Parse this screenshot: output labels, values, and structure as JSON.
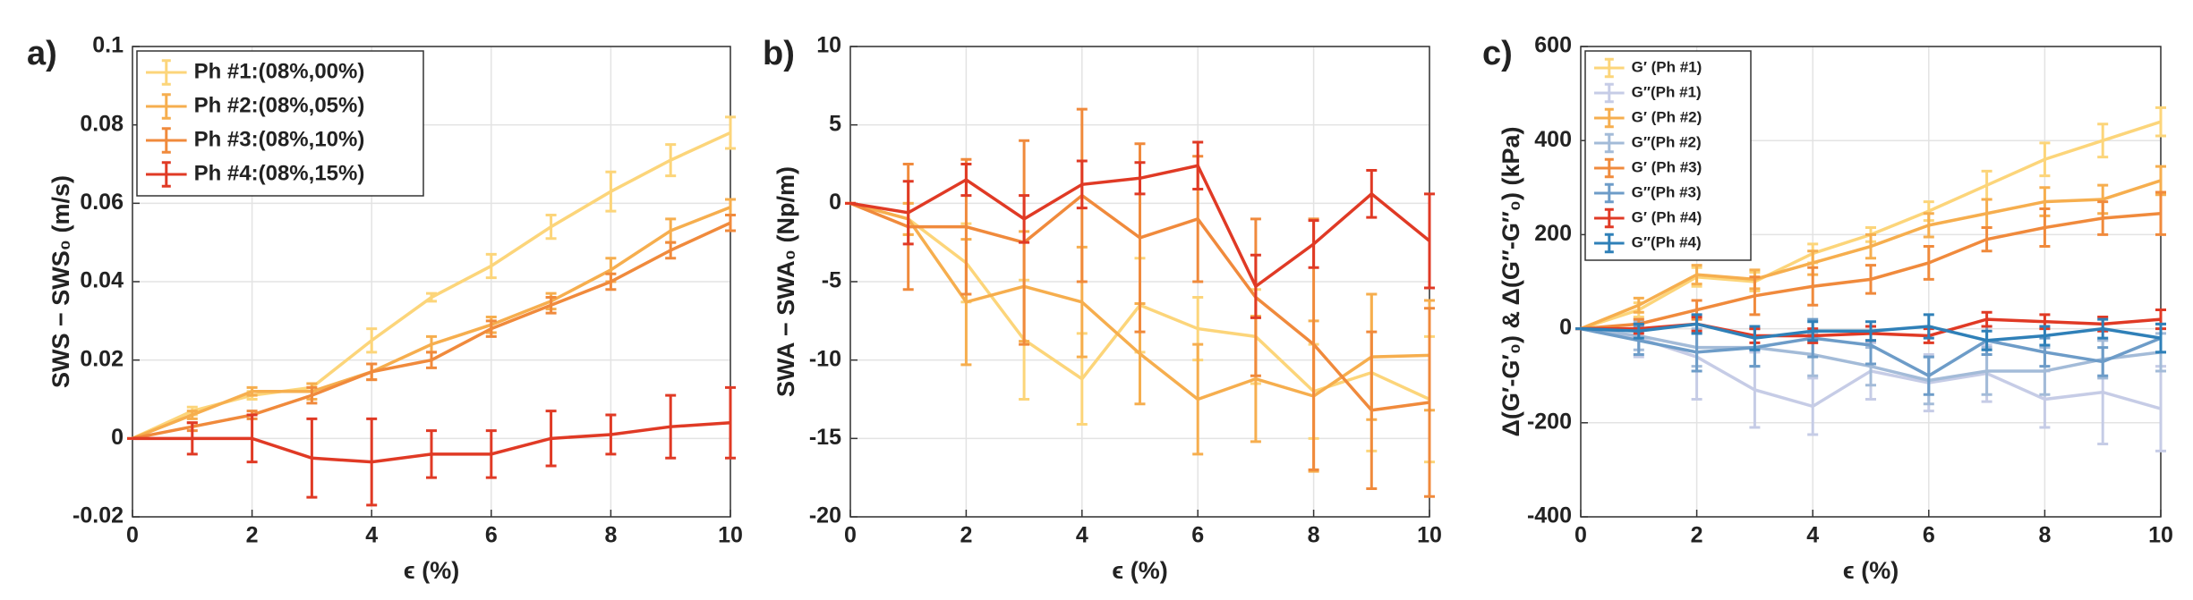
{
  "chart_data": [
    {
      "type": "line",
      "label": "a)",
      "ylabel": "SWS − SWS₀ (m/s)",
      "xlabel": "ϵ (%)",
      "x": [
        0,
        1,
        2,
        3,
        4,
        5,
        6,
        7,
        8,
        9,
        10
      ],
      "xlim": [
        0,
        10
      ],
      "xticks": [
        0,
        2,
        4,
        6,
        8,
        10
      ],
      "ylim": [
        -0.02,
        0.1
      ],
      "yticks": [
        -0.02,
        0,
        0.02,
        0.04,
        0.06,
        0.08,
        0.1
      ],
      "grid": true,
      "legend": "upper left",
      "series": [
        {
          "name": "Ph #1:(08%,00%)",
          "color": "#fcd57a",
          "values": [
            0,
            0.007,
            0.011,
            0.013,
            0.025,
            0.036,
            0.044,
            0.054,
            0.063,
            0.071,
            0.078
          ],
          "errors": [
            0,
            0.001,
            0.001,
            0.001,
            0.003,
            0.001,
            0.003,
            0.003,
            0.005,
            0.004,
            0.004
          ]
        },
        {
          "name": "Ph #2:(08%,05%)",
          "color": "#f6ae4e",
          "values": [
            0,
            0.006,
            0.012,
            0.012,
            0.017,
            0.024,
            0.029,
            0.035,
            0.043,
            0.053,
            0.059
          ],
          "errors": [
            0,
            0.001,
            0.001,
            0.002,
            0.002,
            0.002,
            0.002,
            0.002,
            0.003,
            0.003,
            0.002
          ]
        },
        {
          "name": "Ph #3:(08%,10%)",
          "color": "#f08a3c",
          "values": [
            0,
            0.003,
            0.006,
            0.011,
            0.017,
            0.02,
            0.028,
            0.034,
            0.04,
            0.048,
            0.055
          ],
          "errors": [
            0,
            0.001,
            0.001,
            0.002,
            0.002,
            0.002,
            0.002,
            0.002,
            0.002,
            0.002,
            0.002
          ]
        },
        {
          "name": "Ph #4:(08%,15%)",
          "color": "#e03a25",
          "values": [
            0,
            0,
            0,
            -0.005,
            -0.006,
            -0.004,
            -0.004,
            0,
            0.001,
            0.003,
            0.004
          ],
          "errors": [
            0,
            0.004,
            0.006,
            0.01,
            0.011,
            0.006,
            0.006,
            0.007,
            0.005,
            0.008,
            0.009
          ]
        }
      ]
    },
    {
      "type": "line",
      "label": "b)",
      "ylabel": "SWA − SWA₀ (Np/m)",
      "xlabel": "ϵ (%)",
      "x": [
        0,
        1,
        2,
        3,
        4,
        5,
        6,
        7,
        8,
        9,
        10
      ],
      "xlim": [
        0,
        10
      ],
      "xticks": [
        0,
        2,
        4,
        6,
        8,
        10
      ],
      "ylim": [
        -20,
        10
      ],
      "yticks": [
        -20,
        -15,
        -10,
        -5,
        0,
        5,
        10
      ],
      "grid": true,
      "series": [
        {
          "color": "#fcd57a",
          "values": [
            0,
            -1,
            -3.8,
            -8.7,
            -11.2,
            -6.5,
            -8,
            -8.5,
            -12,
            -10.8,
            -12.5
          ],
          "errors": [
            0,
            1,
            2.5,
            3.8,
            2.9,
            3,
            2,
            3,
            3,
            5,
            4
          ]
        },
        {
          "color": "#f6ae4e",
          "values": [
            0,
            -1,
            -6.3,
            -5.3,
            -6.3,
            -9.6,
            -12.5,
            -11.2,
            -12.3,
            -9.8,
            -9.7
          ],
          "errors": [
            0,
            1,
            4,
            3.5,
            3.5,
            3.2,
            3.5,
            4,
            4.8,
            4,
            3.5
          ]
        },
        {
          "color": "#f08a3c",
          "values": [
            0,
            -1.5,
            -1.5,
            -2.5,
            0.5,
            -2.2,
            -1,
            -6,
            -9,
            -13.2,
            -12.7
          ],
          "errors": [
            0,
            4,
            4.3,
            6.5,
            5.5,
            6,
            4,
            5,
            8,
            5,
            6
          ]
        },
        {
          "color": "#e03a25",
          "values": [
            0,
            -0.6,
            1.5,
            -1,
            1.2,
            1.6,
            2.4,
            -5.3,
            -2.6,
            0.6,
            -2.4
          ],
          "errors": [
            0,
            2,
            1,
            1.5,
            1.5,
            1,
            1.5,
            2,
            1.5,
            1.5,
            3
          ]
        }
      ]
    },
    {
      "type": "line",
      "label": "c)",
      "ylabel": "Δ(G′-G′₀) & Δ(G′′-G′′₀) (kPa)",
      "xlabel": "ϵ (%)",
      "x": [
        0,
        1,
        2,
        3,
        4,
        5,
        6,
        7,
        8,
        9,
        10
      ],
      "xlim": [
        0,
        10
      ],
      "xticks": [
        0,
        2,
        4,
        6,
        8,
        10
      ],
      "ylim": [
        -400,
        600
      ],
      "yticks": [
        -400,
        -200,
        0,
        200,
        400,
        600
      ],
      "grid": true,
      "legend": "upper left",
      "series": [
        {
          "name": "G′ (Ph #1)",
          "color": "#fcd57a",
          "values": [
            0,
            40,
            110,
            100,
            160,
            200,
            250,
            305,
            360,
            400,
            440
          ],
          "errors": [
            0,
            15,
            20,
            20,
            20,
            15,
            20,
            30,
            35,
            35,
            30
          ]
        },
        {
          "name": "G′′(Ph #1)",
          "color": "#c6cce6",
          "values": [
            0,
            -20,
            -60,
            -130,
            -165,
            -90,
            -115,
            -95,
            -150,
            -135,
            -170
          ],
          "errors": [
            0,
            40,
            90,
            80,
            60,
            60,
            60,
            60,
            60,
            110,
            90
          ]
        },
        {
          "name": "G′ (Ph #2)",
          "color": "#f6ae4e",
          "values": [
            0,
            50,
            115,
            105,
            140,
            175,
            220,
            245,
            270,
            275,
            315
          ],
          "errors": [
            0,
            15,
            20,
            20,
            25,
            25,
            25,
            30,
            30,
            30,
            30
          ]
        },
        {
          "name": "G′′(Ph #2)",
          "color": "#a3bbd8",
          "values": [
            0,
            -15,
            -40,
            -40,
            -55,
            -80,
            -110,
            -90,
            -90,
            -65,
            -50
          ],
          "errors": [
            0,
            30,
            40,
            40,
            45,
            40,
            50,
            50,
            50,
            40,
            40
          ]
        },
        {
          "name": "G′ (Ph #3)",
          "color": "#f08a3c",
          "values": [
            0,
            10,
            40,
            70,
            90,
            105,
            140,
            190,
            215,
            235,
            245
          ],
          "errors": [
            0,
            10,
            20,
            40,
            40,
            30,
            35,
            25,
            40,
            35,
            45
          ]
        },
        {
          "name": "G′′(Ph #3)",
          "color": "#6d9cc8",
          "values": [
            0,
            -25,
            -50,
            -40,
            -20,
            -35,
            -100,
            -25,
            -50,
            -70,
            -20
          ],
          "errors": [
            0,
            30,
            40,
            40,
            40,
            40,
            40,
            30,
            30,
            30,
            30
          ]
        },
        {
          "name": "G′ (Ph #4)",
          "color": "#e03a25",
          "values": [
            0,
            0,
            10,
            -15,
            -15,
            -10,
            -15,
            20,
            15,
            10,
            20
          ],
          "errors": [
            0,
            10,
            15,
            15,
            15,
            15,
            15,
            15,
            15,
            15,
            20
          ]
        },
        {
          "name": "G′′(Ph #4)",
          "color": "#2f80b8",
          "values": [
            0,
            -5,
            10,
            -20,
            -5,
            -5,
            5,
            -25,
            -15,
            0,
            -20
          ],
          "errors": [
            0,
            15,
            20,
            25,
            20,
            20,
            25,
            20,
            20,
            20,
            30
          ]
        }
      ]
    }
  ]
}
